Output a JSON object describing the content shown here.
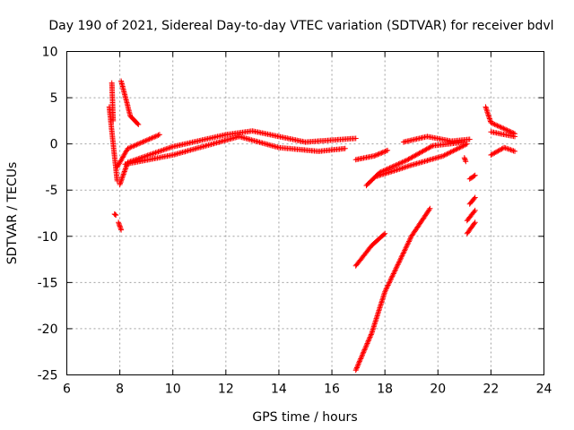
{
  "chart_data": {
    "type": "scatter",
    "title": "Day 190 of 2021, Sidereal Day-to-day VTEC variation (SDTVAR) for receiver bdvl",
    "xlabel": "GPS time / hours",
    "ylabel": "SDTVAR / TECUs",
    "xlim": [
      6,
      24
    ],
    "ylim": [
      -25,
      10
    ],
    "xticks": [
      6,
      8,
      10,
      12,
      14,
      16,
      18,
      20,
      22,
      24
    ],
    "yticks": [
      -25,
      -20,
      -15,
      -10,
      -5,
      0,
      5,
      10
    ],
    "grid": true,
    "marker": "+",
    "colors": {
      "series": "#ff0000",
      "grid": "#a0a0a0",
      "axis": "#000000"
    },
    "series": [
      {
        "name": "arc-early-spikes",
        "segments": [
          [
            7.6,
            4.0,
            7.9,
            -4.0
          ],
          [
            7.7,
            6.6,
            7.75,
            2.5
          ],
          [
            7.8,
            -7.6,
            7.85,
            -7.7
          ],
          [
            7.95,
            -8.5,
            8.05,
            -9.3
          ],
          [
            8.05,
            6.8,
            8.4,
            3.0
          ],
          [
            8.4,
            3.0,
            8.7,
            2.1
          ]
        ]
      },
      {
        "name": "arc-a",
        "segments": [
          [
            7.9,
            -2.5,
            8.3,
            -0.5
          ],
          [
            8.3,
            -0.5,
            9.5,
            1.0
          ]
        ]
      },
      {
        "name": "arc-b",
        "segments": [
          [
            8.0,
            -4.4,
            8.3,
            -2.0
          ],
          [
            8.3,
            -2.0,
            10.0,
            -0.3
          ],
          [
            10.0,
            -0.3,
            12.0,
            1.0
          ],
          [
            12.0,
            1.0,
            13.0,
            1.4
          ],
          [
            13.0,
            1.4,
            14.0,
            0.8
          ],
          [
            14.0,
            0.8,
            15.0,
            0.2
          ],
          [
            15.0,
            0.2,
            16.9,
            0.6
          ]
        ]
      },
      {
        "name": "arc-c",
        "segments": [
          [
            8.2,
            -2.2,
            10.0,
            -1.2
          ],
          [
            10.0,
            -1.2,
            11.5,
            0.0
          ],
          [
            11.5,
            0.0,
            12.5,
            0.8
          ],
          [
            12.5,
            0.8,
            14.0,
            -0.4
          ],
          [
            14.0,
            -0.4,
            15.5,
            -0.8
          ],
          [
            15.5,
            -0.8,
            16.5,
            -0.5
          ]
        ]
      },
      {
        "name": "arc-d",
        "segments": [
          [
            16.9,
            -1.7,
            17.6,
            -1.3
          ],
          [
            17.6,
            -1.3,
            18.1,
            -0.7
          ]
        ]
      },
      {
        "name": "arc-e",
        "segments": [
          [
            17.3,
            -4.5,
            17.8,
            -3.1
          ],
          [
            17.8,
            -3.1,
            18.8,
            -1.8
          ],
          [
            18.8,
            -1.8,
            19.8,
            -0.2
          ],
          [
            19.8,
            -0.2,
            21.0,
            0.2
          ]
        ]
      },
      {
        "name": "arc-f",
        "segments": [
          [
            17.7,
            -3.5,
            19.0,
            -2.3
          ],
          [
            19.0,
            -2.3,
            20.2,
            -1.3
          ],
          [
            20.2,
            -1.3,
            21.1,
            0.0
          ]
        ]
      },
      {
        "name": "arc-g",
        "segments": [
          [
            18.7,
            0.2,
            19.6,
            0.8
          ],
          [
            19.6,
            0.8,
            20.5,
            0.3
          ],
          [
            20.5,
            0.3,
            21.2,
            0.5
          ]
        ]
      },
      {
        "name": "arc-h",
        "segments": [
          [
            16.9,
            -13.2,
            17.5,
            -11.0
          ],
          [
            17.5,
            -11.0,
            18.0,
            -9.7
          ]
        ]
      },
      {
        "name": "arc-i",
        "segments": [
          [
            16.9,
            -24.5,
            17.5,
            -20.5
          ],
          [
            17.5,
            -20.5,
            18.0,
            -16.0
          ],
          [
            18.0,
            -16.0,
            19.0,
            -10.0
          ],
          [
            19.0,
            -10.0,
            19.7,
            -7.0
          ]
        ]
      },
      {
        "name": "arc-j",
        "segments": [
          [
            21.1,
            -9.7,
            21.4,
            -8.5
          ],
          [
            21.1,
            -8.3,
            21.4,
            -7.2
          ],
          [
            21.2,
            -6.5,
            21.4,
            -5.8
          ],
          [
            21.2,
            -3.8,
            21.4,
            -3.4
          ],
          [
            21.0,
            -1.5,
            21.05,
            -1.9
          ]
        ]
      },
      {
        "name": "arc-k",
        "segments": [
          [
            21.8,
            4.0,
            22.0,
            2.3
          ],
          [
            22.0,
            2.3,
            22.9,
            1.1
          ],
          [
            22.0,
            1.3,
            22.9,
            0.8
          ],
          [
            22.0,
            -1.2,
            22.5,
            -0.4
          ],
          [
            22.5,
            -0.4,
            22.9,
            -0.8
          ]
        ]
      }
    ]
  }
}
